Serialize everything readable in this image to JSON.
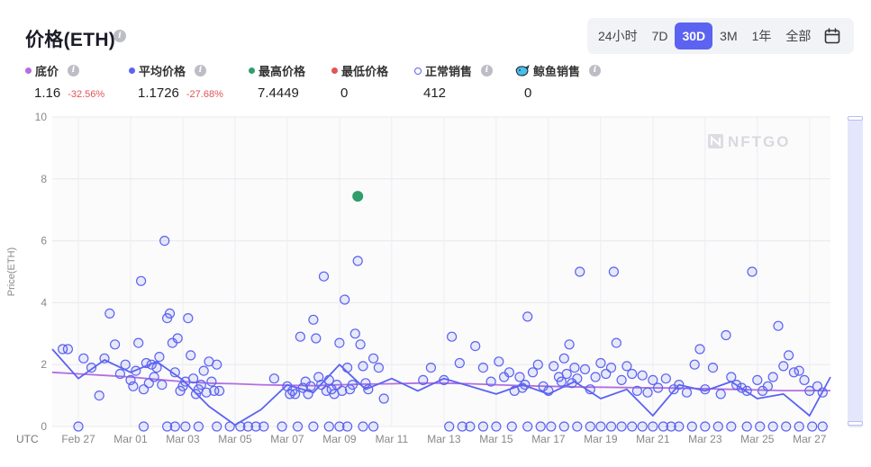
{
  "header": {
    "title": "价格(ETH)"
  },
  "range_buttons": [
    "24小时",
    "7D",
    "30D",
    "3M",
    "1年",
    "全部"
  ],
  "range_active": "30D",
  "legend": {
    "floor": {
      "label": "底价",
      "value": "1.16",
      "change": "-32.56%",
      "color": "#b46ee0"
    },
    "avg": {
      "label": "平均价格",
      "value": "1.1726",
      "change": "-27.68%",
      "color": "#5b63f0"
    },
    "max": {
      "label": "最高价格",
      "value": "7.4449",
      "color": "#2f9e6b"
    },
    "min": {
      "label": "最低价格",
      "value": "0",
      "color": "#e05555"
    },
    "normal": {
      "label": "正常销售",
      "value": "412",
      "color": "#5b63f0"
    },
    "whale": {
      "label": "鲸鱼销售",
      "value": "0"
    }
  },
  "watermark": "NFTGO",
  "chart_data": {
    "type": "scatter",
    "ylabel": "Price(ETH)",
    "xlabel": "UTC",
    "ylim": [
      0,
      10
    ],
    "yticks": [
      "0",
      "2",
      "4",
      "6",
      "8",
      "10"
    ],
    "xlim": [
      0,
      29.8
    ],
    "xticks": [
      {
        "label": "Feb 27",
        "x": 1
      },
      {
        "label": "Mar 01",
        "x": 3
      },
      {
        "label": "Mar 03",
        "x": 5
      },
      {
        "label": "Mar 05",
        "x": 7
      },
      {
        "label": "Mar 07",
        "x": 9
      },
      {
        "label": "Mar 09",
        "x": 11
      },
      {
        "label": "Mar 11",
        "x": 13
      },
      {
        "label": "Mar 13",
        "x": 15
      },
      {
        "label": "Mar 15",
        "x": 17
      },
      {
        "label": "Mar 17",
        "x": 19
      },
      {
        "label": "Mar 19",
        "x": 21
      },
      {
        "label": "Mar 21",
        "x": 23
      },
      {
        "label": "Mar 23",
        "x": 25
      },
      {
        "label": "Mar 25",
        "x": 27
      },
      {
        "label": "Mar 27",
        "x": 29
      }
    ],
    "grid": true,
    "series": [
      {
        "name": "底价",
        "kind": "line",
        "color": "#b46ee0",
        "points": [
          [
            0,
            1.75
          ],
          [
            1,
            1.7
          ],
          [
            2,
            1.65
          ],
          [
            3,
            1.6
          ],
          [
            4,
            1.52
          ],
          [
            5,
            1.45
          ],
          [
            6,
            1.4
          ],
          [
            7,
            1.38
          ],
          [
            8,
            1.35
          ],
          [
            9,
            1.33
          ],
          [
            10,
            1.32
          ],
          [
            11,
            1.35
          ],
          [
            12,
            1.37
          ],
          [
            13,
            1.38
          ],
          [
            14,
            1.4
          ],
          [
            15,
            1.4
          ],
          [
            16,
            1.38
          ],
          [
            17,
            1.35
          ],
          [
            18,
            1.32
          ],
          [
            19,
            1.3
          ],
          [
            20,
            1.28
          ],
          [
            21,
            1.27
          ],
          [
            22,
            1.26
          ],
          [
            23,
            1.25
          ],
          [
            24,
            1.24
          ],
          [
            25,
            1.22
          ],
          [
            26,
            1.2
          ],
          [
            27,
            1.18
          ],
          [
            28,
            1.16
          ],
          [
            29.8,
            1.16
          ]
        ]
      },
      {
        "name": "平均价格",
        "kind": "line",
        "color": "#5b63f0",
        "points": [
          [
            0,
            2.5
          ],
          [
            1,
            1.55
          ],
          [
            2,
            2.15
          ],
          [
            3,
            1.75
          ],
          [
            4,
            2.1
          ],
          [
            5,
            1.5
          ],
          [
            6,
            0.65
          ],
          [
            7,
            0.05
          ],
          [
            8,
            0.55
          ],
          [
            9,
            1.35
          ],
          [
            10,
            1.1
          ],
          [
            11,
            2.0
          ],
          [
            12,
            1.2
          ],
          [
            13,
            1.55
          ],
          [
            14,
            1.15
          ],
          [
            15,
            1.55
          ],
          [
            16,
            1.3
          ],
          [
            17,
            1.05
          ],
          [
            18,
            1.35
          ],
          [
            19,
            1.05
          ],
          [
            20,
            1.45
          ],
          [
            21,
            0.9
          ],
          [
            22,
            1.2
          ],
          [
            23,
            0.35
          ],
          [
            24,
            1.35
          ],
          [
            25,
            1.15
          ],
          [
            26,
            1.45
          ],
          [
            27,
            0.9
          ],
          [
            28,
            1.05
          ],
          [
            29,
            0.35
          ],
          [
            29.8,
            1.6
          ]
        ]
      },
      {
        "name": "最高价格",
        "kind": "point",
        "color": "#2f9e6b",
        "points": [
          [
            11.7,
            7.44
          ]
        ]
      },
      {
        "name": "正常销售",
        "kind": "scatter",
        "color": "#5b63f0",
        "points": [
          [
            0.4,
            2.5
          ],
          [
            0.6,
            2.5
          ],
          [
            1.2,
            2.2
          ],
          [
            1.5,
            1.9
          ],
          [
            1.8,
            1.0
          ],
          [
            2.0,
            2.2
          ],
          [
            2.2,
            3.65
          ],
          [
            2.4,
            2.65
          ],
          [
            2.6,
            1.7
          ],
          [
            2.8,
            2.0
          ],
          [
            3.0,
            1.5
          ],
          [
            3.1,
            1.3
          ],
          [
            3.2,
            1.8
          ],
          [
            3.3,
            2.7
          ],
          [
            3.4,
            4.7
          ],
          [
            3.5,
            1.2
          ],
          [
            3.6,
            2.05
          ],
          [
            3.7,
            1.4
          ],
          [
            3.8,
            2.0
          ],
          [
            3.9,
            1.6
          ],
          [
            4.0,
            1.9
          ],
          [
            4.1,
            2.25
          ],
          [
            4.2,
            1.35
          ],
          [
            4.3,
            6.0
          ],
          [
            4.4,
            3.5
          ],
          [
            4.5,
            3.65
          ],
          [
            4.6,
            2.7
          ],
          [
            4.7,
            1.75
          ],
          [
            4.8,
            2.85
          ],
          [
            4.9,
            1.15
          ],
          [
            5.0,
            1.3
          ],
          [
            5.1,
            1.45
          ],
          [
            5.2,
            3.5
          ],
          [
            5.3,
            2.3
          ],
          [
            5.4,
            1.55
          ],
          [
            5.5,
            1.05
          ],
          [
            5.6,
            1.2
          ],
          [
            5.7,
            1.35
          ],
          [
            5.8,
            1.8
          ],
          [
            5.9,
            1.1
          ],
          [
            6.0,
            2.1
          ],
          [
            6.1,
            1.45
          ],
          [
            6.2,
            1.15
          ],
          [
            6.3,
            2.0
          ],
          [
            6.4,
            1.15
          ],
          [
            8.5,
            1.55
          ],
          [
            9.0,
            1.3
          ],
          [
            9.1,
            1.05
          ],
          [
            9.2,
            1.15
          ],
          [
            9.3,
            1.05
          ],
          [
            9.5,
            2.9
          ],
          [
            9.6,
            1.25
          ],
          [
            9.7,
            1.45
          ],
          [
            9.8,
            1.05
          ],
          [
            9.9,
            1.3
          ],
          [
            10.0,
            3.45
          ],
          [
            10.1,
            2.85
          ],
          [
            10.2,
            1.6
          ],
          [
            10.3,
            1.35
          ],
          [
            10.4,
            4.85
          ],
          [
            10.5,
            1.15
          ],
          [
            10.6,
            1.5
          ],
          [
            10.7,
            1.2
          ],
          [
            10.8,
            1.05
          ],
          [
            10.9,
            1.35
          ],
          [
            11.0,
            2.7
          ],
          [
            11.1,
            1.15
          ],
          [
            11.2,
            4.1
          ],
          [
            11.3,
            1.9
          ],
          [
            11.4,
            1.2
          ],
          [
            11.5,
            1.35
          ],
          [
            11.6,
            3.0
          ],
          [
            11.7,
            5.35
          ],
          [
            11.8,
            2.65
          ],
          [
            11.9,
            1.95
          ],
          [
            12.0,
            1.4
          ],
          [
            12.1,
            1.2
          ],
          [
            12.3,
            2.2
          ],
          [
            12.5,
            1.9
          ],
          [
            12.7,
            0.9
          ],
          [
            14.2,
            1.5
          ],
          [
            14.5,
            1.9
          ],
          [
            15.0,
            1.5
          ],
          [
            15.3,
            2.9
          ],
          [
            15.6,
            2.05
          ],
          [
            16.2,
            2.6
          ],
          [
            16.5,
            1.9
          ],
          [
            16.8,
            1.45
          ],
          [
            17.1,
            2.1
          ],
          [
            17.3,
            1.6
          ],
          [
            17.5,
            1.75
          ],
          [
            17.7,
            1.15
          ],
          [
            17.9,
            1.6
          ],
          [
            18.0,
            1.25
          ],
          [
            18.1,
            1.35
          ],
          [
            18.2,
            3.55
          ],
          [
            18.4,
            1.75
          ],
          [
            18.6,
            2.0
          ],
          [
            18.8,
            1.3
          ],
          [
            19.0,
            1.15
          ],
          [
            19.2,
            1.95
          ],
          [
            19.4,
            1.6
          ],
          [
            19.5,
            1.45
          ],
          [
            19.6,
            2.2
          ],
          [
            19.7,
            1.7
          ],
          [
            19.8,
            2.65
          ],
          [
            19.9,
            1.4
          ],
          [
            20.0,
            1.9
          ],
          [
            20.1,
            1.55
          ],
          [
            20.2,
            5.0
          ],
          [
            20.4,
            1.85
          ],
          [
            20.6,
            1.2
          ],
          [
            20.8,
            1.6
          ],
          [
            21.0,
            2.05
          ],
          [
            21.2,
            1.7
          ],
          [
            21.4,
            1.9
          ],
          [
            21.5,
            5.0
          ],
          [
            21.6,
            2.7
          ],
          [
            21.8,
            1.5
          ],
          [
            22.0,
            1.95
          ],
          [
            22.2,
            1.7
          ],
          [
            22.4,
            1.15
          ],
          [
            22.6,
            1.65
          ],
          [
            22.8,
            1.1
          ],
          [
            23.0,
            1.5
          ],
          [
            23.2,
            1.25
          ],
          [
            23.5,
            1.55
          ],
          [
            23.8,
            1.2
          ],
          [
            24.0,
            1.35
          ],
          [
            24.3,
            1.1
          ],
          [
            24.6,
            2.0
          ],
          [
            24.8,
            2.5
          ],
          [
            25.0,
            1.2
          ],
          [
            25.3,
            1.9
          ],
          [
            25.6,
            1.05
          ],
          [
            25.8,
            2.95
          ],
          [
            26.0,
            1.6
          ],
          [
            26.2,
            1.35
          ],
          [
            26.4,
            1.25
          ],
          [
            26.6,
            1.15
          ],
          [
            26.8,
            5.0
          ],
          [
            27.0,
            1.5
          ],
          [
            27.2,
            1.15
          ],
          [
            27.4,
            1.3
          ],
          [
            27.6,
            1.6
          ],
          [
            27.8,
            3.25
          ],
          [
            28.0,
            1.95
          ],
          [
            28.2,
            2.3
          ],
          [
            28.4,
            1.75
          ],
          [
            28.6,
            1.8
          ],
          [
            28.8,
            1.5
          ],
          [
            29.0,
            1.15
          ],
          [
            29.3,
            1.3
          ],
          [
            29.5,
            1.1
          ]
        ]
      },
      {
        "name": "正常销售",
        "kind": "scatter-zero",
        "color": "#5b63f0",
        "points": [
          [
            1.0,
            0
          ],
          [
            3.5,
            0
          ],
          [
            4.4,
            0
          ],
          [
            4.7,
            0
          ],
          [
            5.1,
            0
          ],
          [
            5.6,
            0
          ],
          [
            6.3,
            0
          ],
          [
            6.8,
            0
          ],
          [
            7.2,
            0
          ],
          [
            7.5,
            0
          ],
          [
            7.8,
            0
          ],
          [
            8.1,
            0
          ],
          [
            8.8,
            0
          ],
          [
            9.4,
            0
          ],
          [
            10.0,
            0
          ],
          [
            10.6,
            0
          ],
          [
            11.0,
            0
          ],
          [
            11.3,
            0
          ],
          [
            11.9,
            0
          ],
          [
            12.3,
            0
          ],
          [
            15.2,
            0
          ],
          [
            15.7,
            0
          ],
          [
            16.0,
            0
          ],
          [
            16.5,
            0
          ],
          [
            17.0,
            0
          ],
          [
            17.6,
            0
          ],
          [
            18.2,
            0
          ],
          [
            18.7,
            0
          ],
          [
            19.1,
            0
          ],
          [
            19.6,
            0
          ],
          [
            20.1,
            0
          ],
          [
            20.6,
            0
          ],
          [
            21.0,
            0
          ],
          [
            21.4,
            0
          ],
          [
            21.8,
            0
          ],
          [
            22.2,
            0
          ],
          [
            22.6,
            0
          ],
          [
            23.0,
            0
          ],
          [
            23.4,
            0
          ],
          [
            23.7,
            0
          ],
          [
            24.0,
            0
          ],
          [
            24.5,
            0
          ],
          [
            25.0,
            0
          ],
          [
            25.5,
            0
          ],
          [
            26.0,
            0
          ],
          [
            26.6,
            0
          ],
          [
            27.1,
            0
          ],
          [
            27.6,
            0
          ],
          [
            28.1,
            0
          ],
          [
            28.6,
            0
          ],
          [
            29.1,
            0
          ],
          [
            29.5,
            0
          ]
        ]
      }
    ]
  }
}
